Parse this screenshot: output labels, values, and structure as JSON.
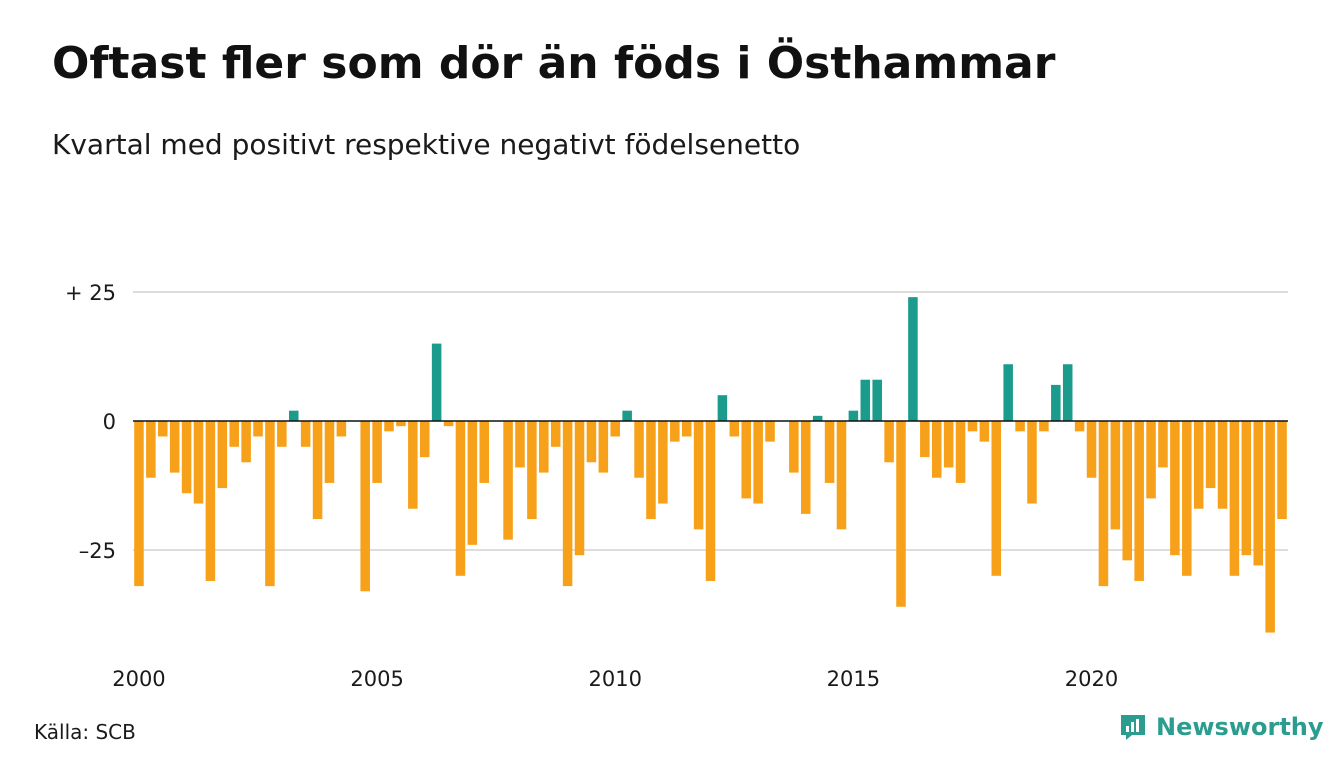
{
  "title": "Oftast fler som dör än föds i Östhammar",
  "subtitle": "Kvartal med positivt respektive negativt födelsenetto",
  "source": "Källa: SCB",
  "brand": "Newsworthy",
  "colors": {
    "positive": "#1a9b8c",
    "negative": "#f7a11a",
    "grid": "#dddddd",
    "zero": "#111111",
    "brand": "#2a9d8f"
  },
  "icons": {
    "logo": "chart-bubble-icon"
  },
  "chart_data": {
    "type": "bar",
    "x_start": "2000-Q1",
    "frequency": "quarterly",
    "ylim": [
      -42,
      27
    ],
    "y_ticks": [
      {
        "value": 25,
        "label": "+ 25"
      },
      {
        "value": 0,
        "label": "0"
      },
      {
        "value": -25,
        "label": "–25"
      }
    ],
    "x_ticks": [
      "2000",
      "2005",
      "2010",
      "2015",
      "2020"
    ],
    "grid": true,
    "values": [
      -32,
      -11,
      -3,
      -10,
      -14,
      -16,
      -31,
      -13,
      -5,
      -8,
      -3,
      -32,
      -5,
      2,
      -5,
      -19,
      -12,
      -3,
      0,
      -33,
      -12,
      -2,
      -1,
      -17,
      -7,
      15,
      -1,
      -30,
      -24,
      -12,
      0,
      -23,
      -9,
      -19,
      -10,
      -5,
      -32,
      -26,
      -8,
      -10,
      -3,
      2,
      -11,
      -19,
      -16,
      -4,
      -3,
      -21,
      -31,
      5,
      -3,
      -15,
      -16,
      -4,
      0,
      -10,
      -18,
      1,
      -12,
      -21,
      2,
      8,
      8,
      -8,
      -36,
      24,
      -7,
      -11,
      -9,
      -12,
      -2,
      -4,
      -30,
      11,
      -2,
      -16,
      -2,
      7,
      11,
      -2,
      -11,
      -32,
      -21,
      -27,
      -31,
      -15,
      -9,
      -26,
      -30,
      -17,
      -13,
      -17,
      -30,
      -26,
      -28,
      -41,
      -19
    ]
  }
}
